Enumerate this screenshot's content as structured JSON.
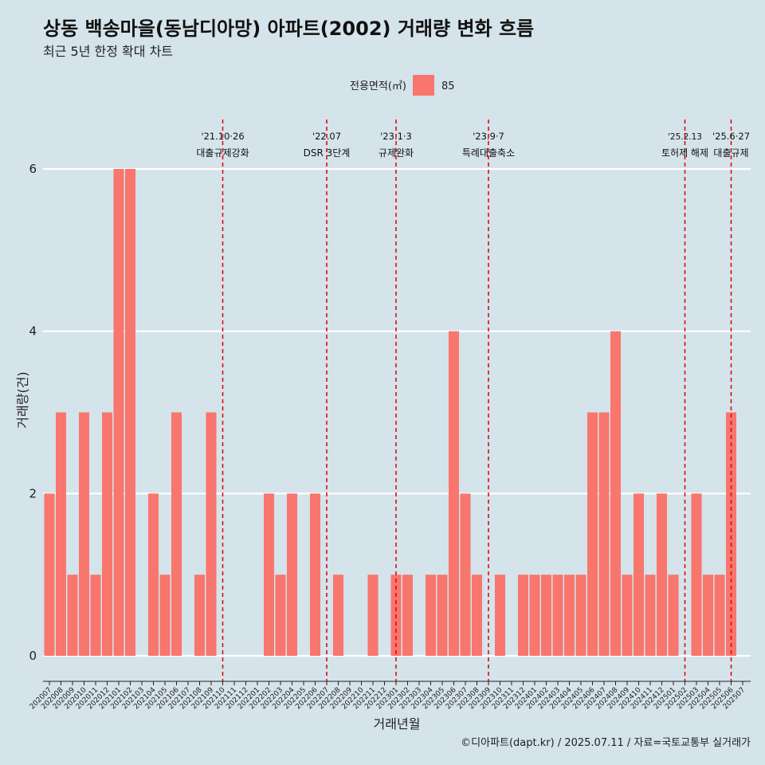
{
  "colors": {
    "background": "#d5e3ea",
    "bar": "#f8766d",
    "grid": "#ffffff",
    "event_line": "#e00000"
  },
  "chart_data": {
    "type": "bar",
    "title": "상동 백송마을(동남디아망) 아파트(2002) 거래량 변화 흐름",
    "subtitle": "최근 5년 한정 확대 차트",
    "xlabel": "거래년월",
    "ylabel": "거래량(건)",
    "legend": {
      "title": "전용면적(㎡)",
      "position": "top",
      "entries": [
        {
          "name": "85",
          "color": "#f8766d"
        }
      ]
    },
    "ylim": [
      0,
      6
    ],
    "yticks": [
      0,
      2,
      4,
      6
    ],
    "grid": true,
    "categories": [
      "202007",
      "202008",
      "202009",
      "202010",
      "202011",
      "202012",
      "202101",
      "202102",
      "202103",
      "202104",
      "202105",
      "202106",
      "202107",
      "202108",
      "202109",
      "202110",
      "202111",
      "202112",
      "202201",
      "202202",
      "202203",
      "202204",
      "202205",
      "202206",
      "202207",
      "202208",
      "202209",
      "202210",
      "202211",
      "202212",
      "202301",
      "202302",
      "202303",
      "202304",
      "202305",
      "202306",
      "202307",
      "202308",
      "202309",
      "202310",
      "202311",
      "202312",
      "202401",
      "202402",
      "202403",
      "202404",
      "202405",
      "202406",
      "202407",
      "202408",
      "202409",
      "202410",
      "202411",
      "202412",
      "202501",
      "202502",
      "202503",
      "202504",
      "202505",
      "202506",
      "202507"
    ],
    "series": [
      {
        "name": "85",
        "values": [
          2,
          3,
          1,
          3,
          1,
          3,
          6,
          6,
          0,
          2,
          1,
          3,
          0,
          1,
          3,
          0,
          0,
          0,
          0,
          2,
          1,
          2,
          0,
          2,
          0,
          1,
          0,
          0,
          1,
          0,
          1,
          1,
          0,
          1,
          1,
          4,
          2,
          1,
          0,
          1,
          0,
          1,
          1,
          1,
          1,
          1,
          1,
          3,
          3,
          4,
          1,
          2,
          1,
          2,
          1,
          0,
          2,
          1,
          1,
          3,
          0
        ]
      }
    ],
    "events": [
      {
        "date": "'21.10·26",
        "label": "대출규제강화",
        "x": "202110"
      },
      {
        "date": "'22.07",
        "label": "DSR 3단계",
        "x": "202207"
      },
      {
        "date": "'23.1·3",
        "label": "규제완화",
        "x": "202301"
      },
      {
        "date": "'23.9·7",
        "label": "특례대출축소",
        "x": "202309"
      },
      {
        "date": "'25.2.13",
        "label": "토허제 해제",
        "x": "202502"
      },
      {
        "date": "'25.6·27",
        "label": "대출규제",
        "x": "202506"
      }
    ]
  },
  "caption": "©디아파트(dapt.kr) / 2025.07.11 / 자료=국토교통부 실거래가"
}
